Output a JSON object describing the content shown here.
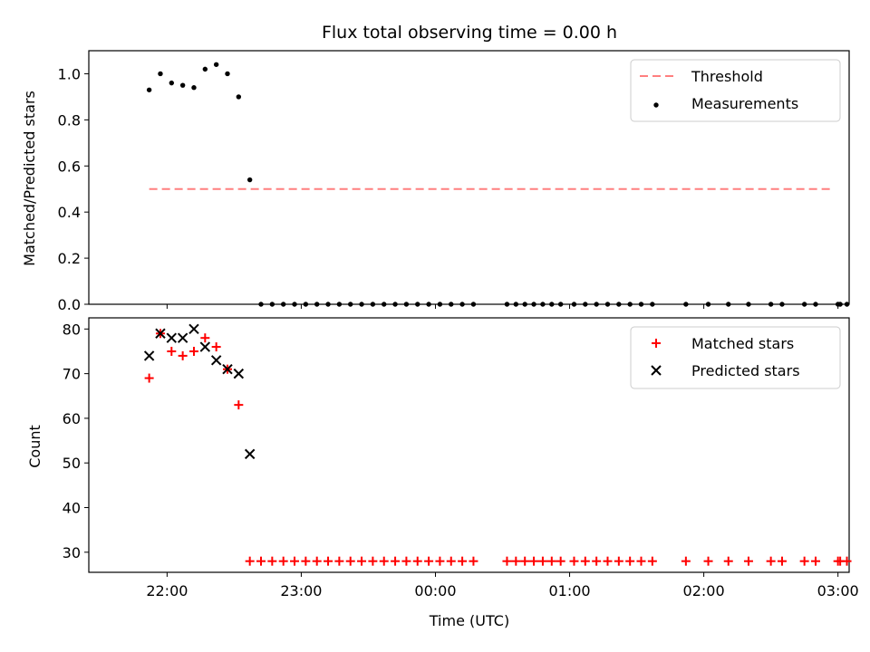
{
  "chart_data": {
    "title": "Flux total observing time = 0.00 h",
    "xlabel": "Time (UTC)",
    "x_ticks": [
      "22:00",
      "23:00",
      "00:00",
      "01:00",
      "02:00",
      "03:00"
    ],
    "x_axis_range": [
      "21:25",
      "03:05"
    ],
    "panels": [
      {
        "type": "scatter",
        "ylabel": "Matched/Predicted stars",
        "ylim": [
          0.0,
          1.1
        ],
        "y_ticks": [
          0.0,
          0.2,
          0.4,
          0.6,
          0.8,
          1.0
        ],
        "legend_position": "top-right",
        "series": [
          {
            "name": "Threshold",
            "kind": "dashed-line",
            "color": "#ff7f7f",
            "x": [
              "21:52",
              "02:57"
            ],
            "y": [
              0.5,
              0.5
            ]
          },
          {
            "name": "Measurements",
            "kind": "dots",
            "color": "#000000",
            "x": [
              "21:52",
              "21:57",
              "22:02",
              "22:07",
              "22:12",
              "22:17",
              "22:22",
              "22:27",
              "22:32",
              "22:37",
              "22:42",
              "22:47",
              "22:52",
              "22:57",
              "23:02",
              "23:07",
              "23:12",
              "23:17",
              "23:22",
              "23:27",
              "23:32",
              "23:37",
              "23:42",
              "23:47",
              "23:52",
              "23:57",
              "00:02",
              "00:07",
              "00:12",
              "00:17",
              "00:32",
              "00:36",
              "00:40",
              "00:44",
              "00:48",
              "00:52",
              "00:56",
              "01:02",
              "01:07",
              "01:12",
              "01:17",
              "01:22",
              "01:27",
              "01:32",
              "01:37",
              "01:52",
              "02:02",
              "02:11",
              "02:20",
              "02:30",
              "02:35",
              "02:45",
              "02:50",
              "03:00",
              "03:01",
              "03:04"
            ],
            "y": [
              0.93,
              1.0,
              0.96,
              0.95,
              0.94,
              1.02,
              1.04,
              1.0,
              0.9,
              0.54,
              0,
              0,
              0,
              0,
              0,
              0,
              0,
              0,
              0,
              0,
              0,
              0,
              0,
              0,
              0,
              0,
              0,
              0,
              0,
              0,
              0,
              0,
              0,
              0,
              0,
              0,
              0,
              0,
              0,
              0,
              0,
              0,
              0,
              0,
              0,
              0,
              0,
              0,
              0,
              0,
              0,
              0,
              0,
              0,
              0,
              0
            ]
          }
        ]
      },
      {
        "type": "scatter",
        "ylabel": "Count",
        "ylim": [
          25.5,
          82.5
        ],
        "y_ticks": [
          30,
          40,
          50,
          60,
          70,
          80
        ],
        "legend_position": "top-right",
        "series": [
          {
            "name": "Matched stars",
            "kind": "plus",
            "color": "#ff0000",
            "x": [
              "21:52",
              "21:57",
              "22:02",
              "22:07",
              "22:12",
              "22:17",
              "22:22",
              "22:27",
              "22:32",
              "22:37",
              "22:42",
              "22:47",
              "22:52",
              "22:57",
              "23:02",
              "23:07",
              "23:12",
              "23:17",
              "23:22",
              "23:27",
              "23:32",
              "23:37",
              "23:42",
              "23:47",
              "23:52",
              "23:57",
              "00:02",
              "00:07",
              "00:12",
              "00:17",
              "00:32",
              "00:36",
              "00:40",
              "00:44",
              "00:48",
              "00:52",
              "00:56",
              "01:02",
              "01:07",
              "01:12",
              "01:17",
              "01:22",
              "01:27",
              "01:32",
              "01:37",
              "01:52",
              "02:02",
              "02:11",
              "02:20",
              "02:30",
              "02:35",
              "02:45",
              "02:50",
              "03:00",
              "03:01",
              "03:04"
            ],
            "y": [
              69,
              79,
              75,
              74,
              75,
              78,
              76,
              71,
              63,
              28,
              28,
              28,
              28,
              28,
              28,
              28,
              28,
              28,
              28,
              28,
              28,
              28,
              28,
              28,
              28,
              28,
              28,
              28,
              28,
              28,
              28,
              28,
              28,
              28,
              28,
              28,
              28,
              28,
              28,
              28,
              28,
              28,
              28,
              28,
              28,
              28,
              28,
              28,
              28,
              28,
              28,
              28,
              28,
              28,
              28,
              28
            ]
          },
          {
            "name": "Predicted stars",
            "kind": "x",
            "color": "#000000",
            "x": [
              "21:52",
              "21:57",
              "22:02",
              "22:07",
              "22:12",
              "22:17",
              "22:22",
              "22:27",
              "22:32",
              "22:37"
            ],
            "y": [
              74,
              79,
              78,
              78,
              80,
              76,
              73,
              71,
              70,
              52
            ]
          }
        ]
      }
    ]
  }
}
